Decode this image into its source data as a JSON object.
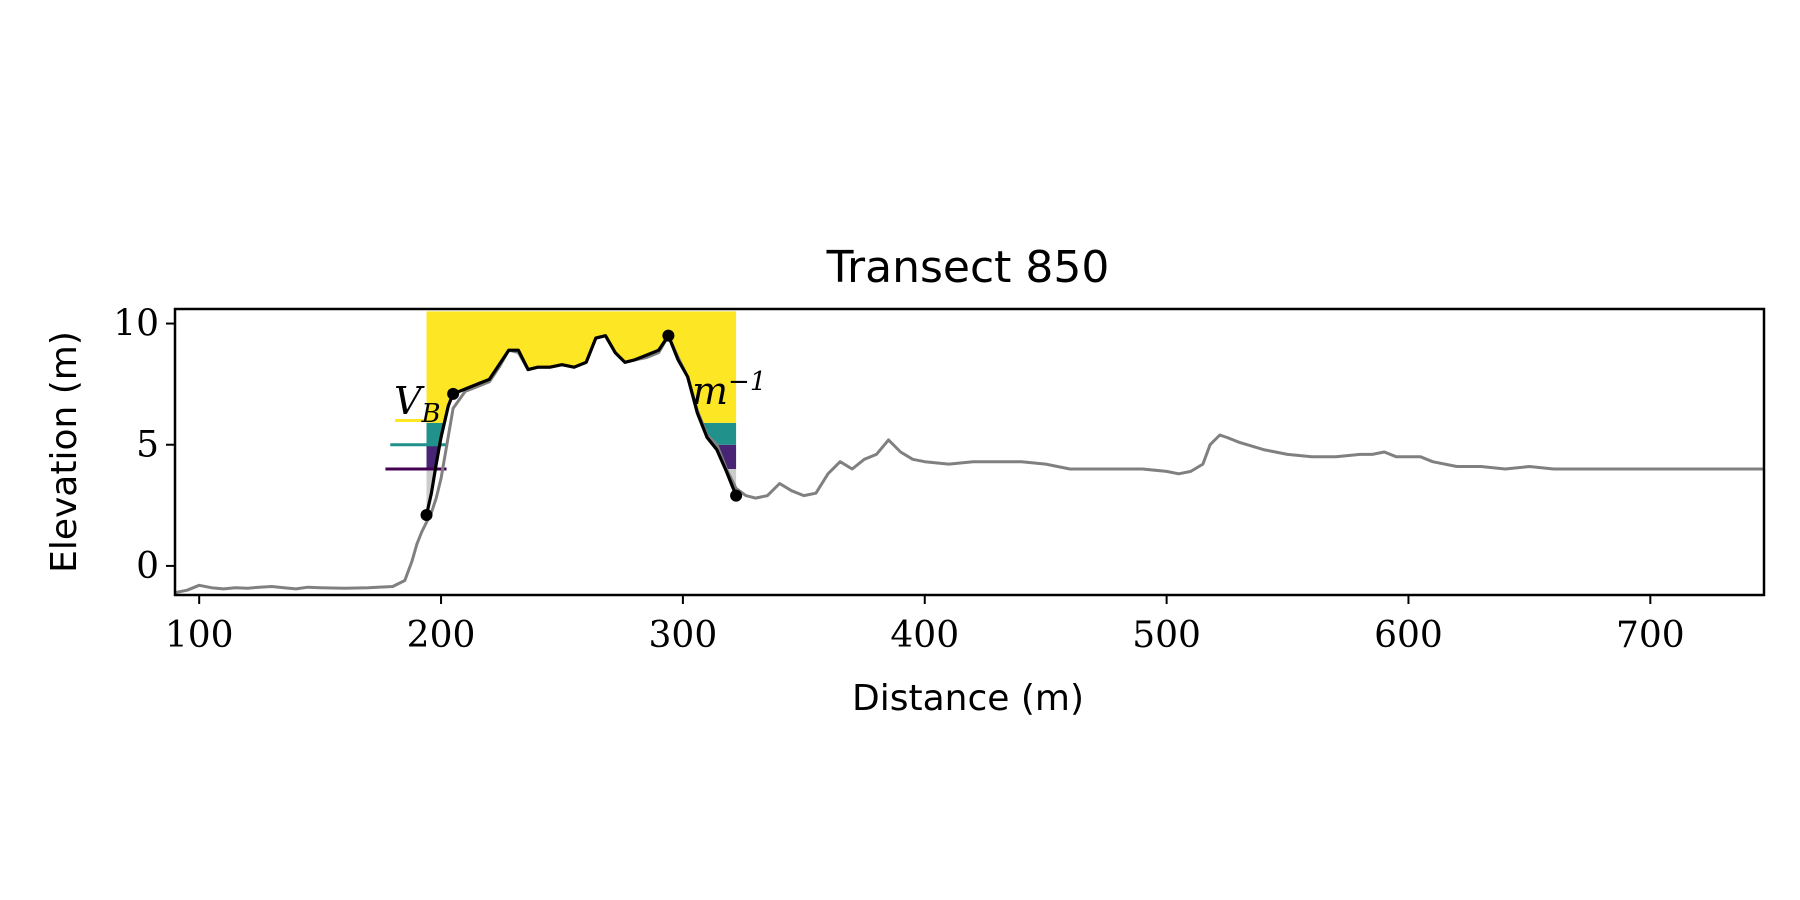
{
  "chart_data": {
    "type": "line",
    "title": "Transect 850",
    "xlabel": "Distance (m)",
    "ylabel": "Elevation (m)",
    "xlim": [
      90,
      747
    ],
    "ylim": [
      -1.2,
      10.6
    ],
    "xticks": [
      100,
      200,
      300,
      400,
      500,
      600,
      700
    ],
    "yticks": [
      0,
      5,
      10
    ],
    "grid": false,
    "legend": "none",
    "annotation": "V_B ... m^{-1}",
    "series": [
      {
        "color": "#808080",
        "x": [
          90,
          95,
          100,
          105,
          110,
          115,
          120,
          125,
          130,
          135,
          140,
          145,
          150,
          160,
          170,
          180,
          185,
          188,
          190,
          192,
          194,
          196,
          198,
          200,
          205,
          210,
          215,
          220,
          224,
          228,
          232,
          236,
          240,
          245,
          250,
          255,
          260,
          264,
          268,
          272,
          276,
          280,
          285,
          290,
          294,
          298,
          302,
          306,
          310,
          314,
          318,
          322,
          326,
          330,
          335,
          340,
          345,
          350,
          355,
          360,
          365,
          370,
          375,
          380,
          385,
          390,
          395,
          400,
          410,
          420,
          430,
          440,
          450,
          460,
          470,
          480,
          490,
          500,
          505,
          510,
          515,
          518,
          522,
          525,
          530,
          540,
          550,
          560,
          570,
          580,
          585,
          590,
          595,
          600,
          605,
          610,
          620,
          630,
          640,
          650,
          660,
          670,
          680,
          690,
          700,
          710,
          720,
          730,
          740,
          747
        ],
        "y": [
          -1.1,
          -1.0,
          -0.8,
          -0.9,
          -0.95,
          -0.9,
          -0.92,
          -0.88,
          -0.85,
          -0.9,
          -0.95,
          -0.88,
          -0.9,
          -0.92,
          -0.9,
          -0.85,
          -0.6,
          0.2,
          0.9,
          1.4,
          1.8,
          2.2,
          2.8,
          3.6,
          6.5,
          7.2,
          7.4,
          7.6,
          8.2,
          8.9,
          8.8,
          8.1,
          8.2,
          8.2,
          8.3,
          8.2,
          8.4,
          9.4,
          9.5,
          8.8,
          8.4,
          8.5,
          8.6,
          8.8,
          9.5,
          8.6,
          7.8,
          6.4,
          5.4,
          5.0,
          4.0,
          3.2,
          2.9,
          2.8,
          2.9,
          3.4,
          3.1,
          2.9,
          3.0,
          3.8,
          4.3,
          4.0,
          4.4,
          4.6,
          5.2,
          4.7,
          4.4,
          4.3,
          4.2,
          4.3,
          4.3,
          4.3,
          4.2,
          4.0,
          4.0,
          4.0,
          4.0,
          3.9,
          3.8,
          3.9,
          4.2,
          5.0,
          5.4,
          5.3,
          5.1,
          4.8,
          4.6,
          4.5,
          4.5,
          4.6,
          4.6,
          4.7,
          4.5,
          4.5,
          4.5,
          4.3,
          4.1,
          4.1,
          4.0,
          4.1,
          4.0,
          4.0,
          4.0,
          4.0,
          4.0,
          4.0,
          4.0,
          4.0,
          4.0,
          4.0
        ]
      },
      {
        "color": "#000000",
        "x": [
          194,
          196,
          198,
          200,
          203,
          205,
          210,
          215,
          220,
          224,
          228,
          232,
          236,
          240,
          245,
          250,
          255,
          260,
          264,
          268,
          272,
          276,
          280,
          285,
          290,
          294,
          298,
          302,
          306,
          310,
          314,
          318,
          322
        ],
        "y": [
          2.1,
          3.0,
          4.2,
          5.3,
          6.6,
          7.1,
          7.3,
          7.5,
          7.7,
          8.3,
          8.9,
          8.9,
          8.1,
          8.2,
          8.2,
          8.3,
          8.2,
          8.4,
          9.4,
          9.5,
          8.8,
          8.4,
          8.5,
          8.7,
          8.9,
          9.5,
          8.5,
          7.8,
          6.3,
          5.3,
          4.8,
          3.9,
          2.9
        ]
      }
    ],
    "markers": [
      {
        "x": 194,
        "y": 2.1
      },
      {
        "x": 205,
        "y": 7.1
      },
      {
        "x": 294,
        "y": 9.5
      },
      {
        "x": 322,
        "y": 2.9
      }
    ],
    "bands": [
      {
        "color": "#cccccc",
        "ybottom_start": 2.1,
        "ybottom_end": 2.9,
        "ytop": 4.0
      },
      {
        "color": "#482475",
        "ybottom": 4.0,
        "ytop": 5.0
      },
      {
        "color": "#21918c",
        "ybottom": 5.0,
        "ytop": 5.9
      },
      {
        "color": "#fde725",
        "ybottom": 5.9,
        "ytop": 10.5
      }
    ],
    "level_lines": [
      {
        "color": "#440154",
        "y": 4.0,
        "x0": 177
      },
      {
        "color": "#21918c",
        "y": 5.0,
        "x0": 179
      },
      {
        "color": "#fde725",
        "y": 6.0,
        "x0": 181
      }
    ]
  }
}
